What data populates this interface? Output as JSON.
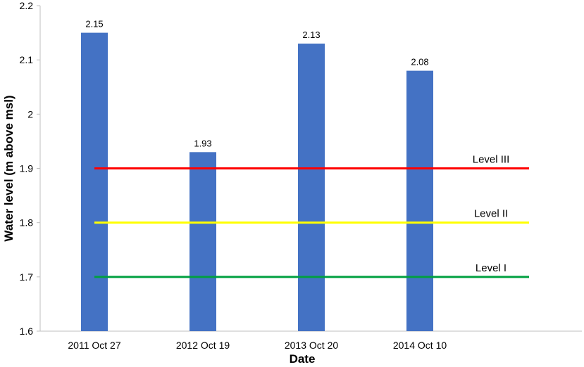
{
  "chart_data": {
    "type": "bar",
    "categories": [
      "2011 Oct 27",
      "2012 Oct 19",
      "2013 Oct 20",
      "2014 Oct 10"
    ],
    "values": [
      2.15,
      1.93,
      2.13,
      2.08
    ],
    "data_labels": [
      "2.15",
      "1.93",
      "2.13",
      "2.08"
    ],
    "xlabel": "Date",
    "ylabel": "Water level (m above msl)",
    "ylim": [
      1.6,
      2.2
    ],
    "yticks": [
      "1.6",
      "1.7",
      "1.8",
      "1.9",
      "2",
      "2.1",
      "2.2"
    ],
    "grid": false,
    "bar_color": "#4472c4",
    "reference_lines": [
      {
        "name": "Level III",
        "value": 1.9,
        "color": "#ff0000"
      },
      {
        "name": "Level II",
        "value": 1.8,
        "color": "#ffff00"
      },
      {
        "name": "Level I",
        "value": 1.7,
        "color": "#00a040"
      }
    ]
  }
}
